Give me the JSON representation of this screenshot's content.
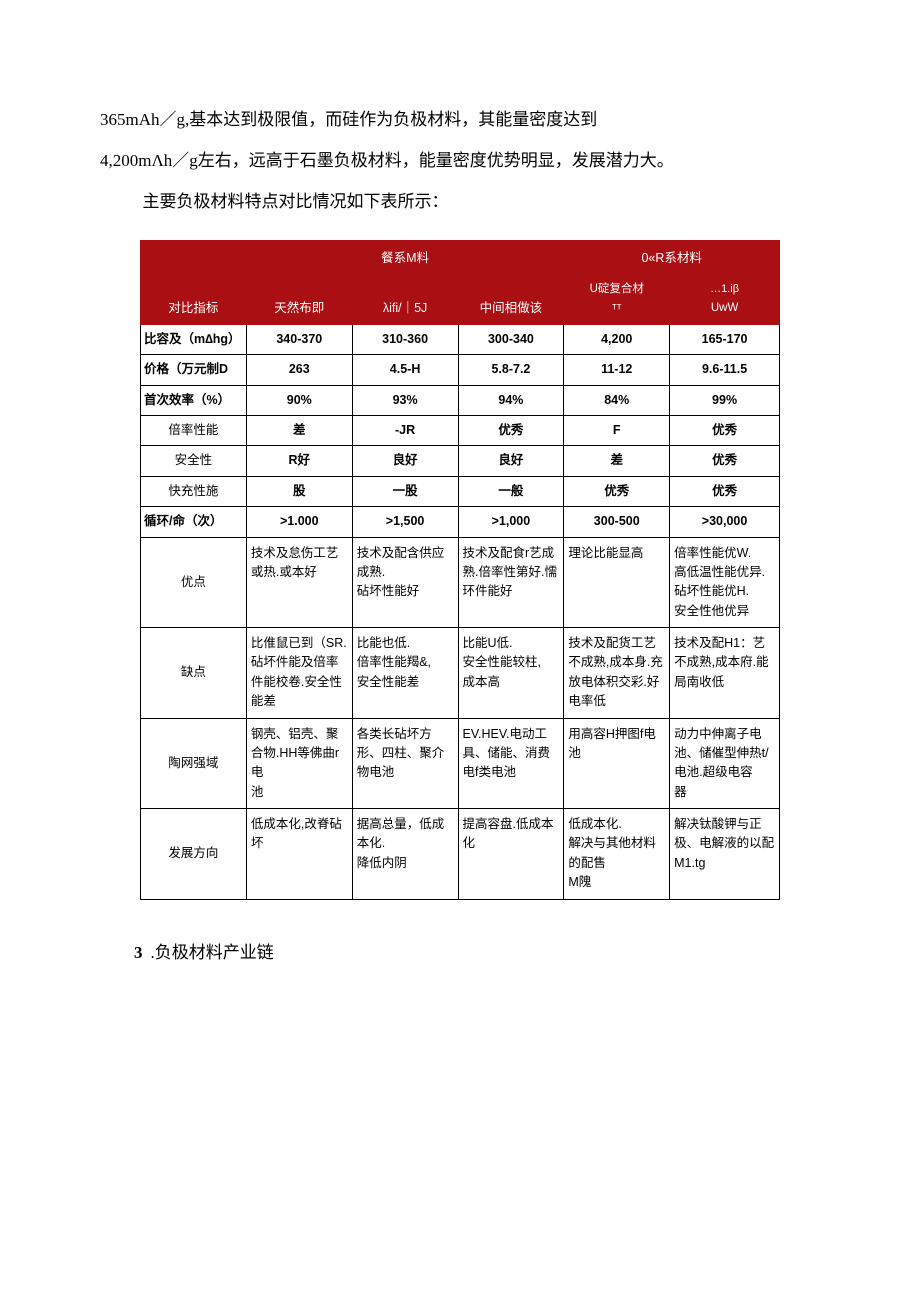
{
  "paragraphs": {
    "p1": "365mAh／g,基本达到极限值，而硅作为负极材料，其能量密度达到",
    "p2": "4,200mΛh／g左右，远高于石墨负极材料，能量密度优势明显，发展潜力大。",
    "p3": "主要负极材料特点对比情况如下表所示："
  },
  "table": {
    "header": {
      "group_a_top": "餐系M料",
      "group_b_top": "0«R系材料",
      "col0": "对比指标",
      "col1": "天然布即",
      "col2": "λifi/｜5J",
      "col3": "中间相做该",
      "col4_top": "U碇复合材",
      "col4_bot": "ᵀᵀ",
      "col5_top": "…1.iβ",
      "col5_bot": "UwW"
    },
    "rows_short": [
      {
        "label": "比容及（m∆hg）",
        "bold_label": true,
        "cells": [
          "340-370",
          "310-360",
          "300-340",
          "4,200",
          "165-170"
        ]
      },
      {
        "label": "价格（万元制D",
        "bold_label": true,
        "cells": [
          "263",
          "4.5-H",
          "5.8-7.2",
          "11-12",
          "9.6-11.5"
        ]
      },
      {
        "label": "首次效率（%）",
        "bold_label": true,
        "cells": [
          "90%",
          "93%",
          "94%",
          "84%",
          "99%"
        ]
      },
      {
        "label": "倍率性能",
        "bold_label": false,
        "cells": [
          "差",
          "-JR",
          "优秀",
          "F",
          "优秀"
        ]
      },
      {
        "label": "安全性",
        "bold_label": false,
        "cells": [
          "R好",
          "良好",
          "良好",
          "差",
          "优秀"
        ]
      },
      {
        "label": "快充性施",
        "bold_label": false,
        "cells": [
          "股",
          "一股",
          "一般",
          "优秀",
          "优秀"
        ]
      },
      {
        "label": "循环/命（次）",
        "bold_label": true,
        "cells": [
          ">1.000",
          ">1,500",
          ">1,000",
          "300-500",
          ">30,000"
        ]
      }
    ],
    "rows_long": [
      {
        "label": "优点",
        "cells": [
          "技术及怠伤工艺或热.或本好",
          "技术及配含供应成熟.\n砧坏性能好",
          "技术及配食r艺成熟.倍率性第好.懦环件能好",
          "理论比能显高",
          "倍率性能优W.\n高低温性能优异.\n砧坏性能优H.\n安全性他优异"
        ]
      },
      {
        "label": "缺点",
        "cells": [
          "比倠鼠已到（SR.\n砧坏件能及倍率件能校卷.安全性能差",
          "比能也低.\n倍率性能羯&,\n安全性能差",
          "比能U低.\n安全性能较柱,\n成本高",
          "技术及配货工艺不成熟,成本身.充放电体积交彩.好电率低",
          "技术及配H1：艺不成熟,成本府.能局南收低"
        ]
      },
      {
        "label": "陶网强域",
        "cells": [
          "钢壳、铝壳、聚合物.HH等佛曲r电\n池",
          "各类长砧坏方形、四柱、聚介物电池",
          "EV.HEV.电动工具、储能、消费\n电f类电池",
          "用高容H押图f电池",
          "动力中伸离子电池、储催型伸热t/电池.超级电容\n器"
        ]
      },
      {
        "label": "发展方向",
        "cells": [
          "低成本化,改脊砧坏",
          "据高总量，低成本化.\n降低内阴",
          "提高容盘.低成本化",
          "低成本化.\n解决与其他材料的配售\nM隗",
          "解决钛酸钾与正极、电解液的以配\nM1.tg"
        ]
      }
    ],
    "col_widths": [
      "106",
      "106",
      "106",
      "106",
      "106",
      "110"
    ],
    "colors": {
      "header_bg": "#a90f13",
      "header_fg": "#ffffff",
      "border": "#000000"
    }
  },
  "section": {
    "num": "3",
    "title": ".负极材料产业链"
  }
}
